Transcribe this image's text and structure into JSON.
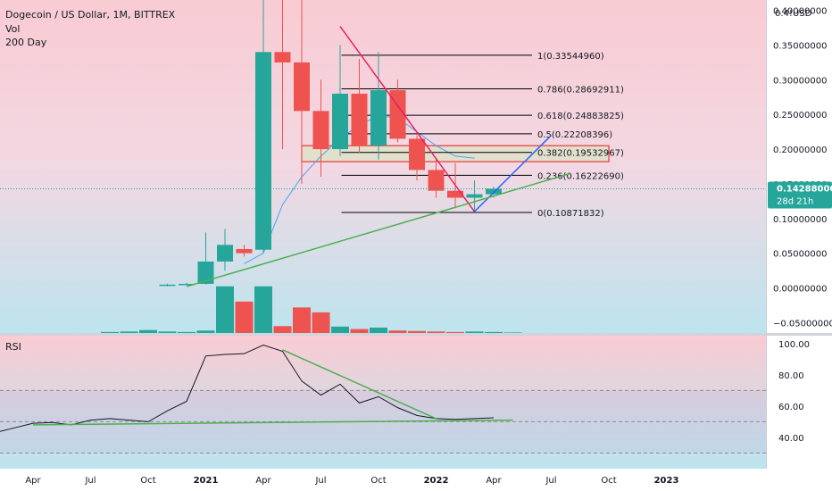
{
  "header": {
    "symbol_line": "Dogecoin / US Dollar, 1M, BITTREX",
    "vol_label": "Vol",
    "ma_label": "200 Day",
    "currency_label": "USD",
    "top_cut_label": "0.4!"
  },
  "price_tag": {
    "value": "0.14288000",
    "countdown": "28d 21h"
  },
  "rsi_label": "RSI",
  "colors": {
    "up": "#26a69a",
    "down": "#ef5350",
    "fib": "#000000",
    "downtrend": "#e91e63",
    "uptrend": "#2962ff",
    "support": "#4caf50",
    "zone_border": "#e53935",
    "ma": "#42a5f5"
  },
  "chart_data": {
    "type": "candlestick",
    "x_ticks": [
      "Apr",
      "Jul",
      "Oct",
      "2021",
      "Apr",
      "Jul",
      "Oct",
      "2022",
      "Apr",
      "Jul",
      "Oct",
      "2023"
    ],
    "y_ticks": [
      "0.40000000",
      "0.35000000",
      "0.30000000",
      "0.25000000",
      "0.20000000",
      "0.15000000",
      "0.10000000",
      "0.05000000",
      "0.00000000",
      "−0.05000000"
    ],
    "ylim": [
      -0.065,
      0.415
    ],
    "months": [
      "2020-11",
      "2020-12",
      "2021-01",
      "2021-02",
      "2021-03",
      "2021-04",
      "2021-05",
      "2021-06",
      "2021-07",
      "2021-08",
      "2021-09",
      "2021-10",
      "2021-11",
      "2021-12",
      "2022-01",
      "2022-02",
      "2022-03",
      "2022-04"
    ],
    "candles": [
      {
        "o": 0.003,
        "h": 0.006,
        "l": 0.002,
        "c": 0.0047
      },
      {
        "o": 0.0047,
        "h": 0.0075,
        "l": 0.004,
        "c": 0.0058
      },
      {
        "o": 0.0058,
        "h": 0.08,
        "l": 0.005,
        "c": 0.038
      },
      {
        "o": 0.038,
        "h": 0.085,
        "l": 0.025,
        "c": 0.062
      },
      {
        "o": 0.056,
        "h": 0.062,
        "l": 0.045,
        "c": 0.05
      },
      {
        "o": 0.055,
        "h": 0.44,
        "l": 0.05,
        "c": 0.34
      },
      {
        "o": 0.34,
        "h": 0.74,
        "l": 0.2,
        "c": 0.325
      },
      {
        "o": 0.325,
        "h": 0.44,
        "l": 0.15,
        "c": 0.255
      },
      {
        "o": 0.255,
        "h": 0.3,
        "l": 0.16,
        "c": 0.2
      },
      {
        "o": 0.2,
        "h": 0.35,
        "l": 0.19,
        "c": 0.28
      },
      {
        "o": 0.28,
        "h": 0.33,
        "l": 0.195,
        "c": 0.205
      },
      {
        "o": 0.205,
        "h": 0.34,
        "l": 0.185,
        "c": 0.285
      },
      {
        "o": 0.285,
        "h": 0.3,
        "l": 0.21,
        "c": 0.215
      },
      {
        "o": 0.215,
        "h": 0.22,
        "l": 0.155,
        "c": 0.17
      },
      {
        "o": 0.17,
        "h": 0.185,
        "l": 0.13,
        "c": 0.14
      },
      {
        "o": 0.14,
        "h": 0.18,
        "l": 0.115,
        "c": 0.13
      },
      {
        "o": 0.13,
        "h": 0.155,
        "l": 0.11,
        "c": 0.135
      },
      {
        "o": 0.135,
        "h": 0.146,
        "l": 0.13,
        "c": 0.1429
      }
    ],
    "volume_relative": [
      0.02,
      0.03,
      0.06,
      0.03,
      0.02,
      0.05,
      0.95,
      0.64,
      0.95,
      0.14,
      0.52,
      0.42,
      0.13,
      0.08,
      0.11,
      0.05,
      0.04,
      0.03,
      0.02,
      0.03,
      0.02,
      0.01
    ],
    "ma_200_day": [
      {
        "t": "2021-03",
        "v": 0.035
      },
      {
        "t": "2021-04",
        "v": 0.05
      },
      {
        "t": "2021-05",
        "v": 0.12
      },
      {
        "t": "2021-06",
        "v": 0.16
      },
      {
        "t": "2021-07",
        "v": 0.19
      },
      {
        "t": "2021-08",
        "v": 0.215
      },
      {
        "t": "2021-09",
        "v": 0.235
      },
      {
        "t": "2021-10",
        "v": 0.248
      },
      {
        "t": "2021-11",
        "v": 0.245
      },
      {
        "t": "2021-12",
        "v": 0.225
      },
      {
        "t": "2022-01",
        "v": 0.205
      },
      {
        "t": "2022-02",
        "v": 0.19
      },
      {
        "t": "2022-03",
        "v": 0.187
      }
    ],
    "fibonacci_levels": [
      {
        "label": "1(0.33544960)",
        "value": 0.3354496
      },
      {
        "label": "0.786(0.28692911)",
        "value": 0.28692911
      },
      {
        "label": "0.618(0.24883825)",
        "value": 0.24883825
      },
      {
        "label": "0.5(0.22208396)",
        "value": 0.22208396
      },
      {
        "label": "0.382(0.19532967)",
        "value": 0.19532967
      },
      {
        "label": "0.236(0.16222690)",
        "value": 0.1622269
      },
      {
        "label": "0(0.10871832)",
        "value": 0.10871832
      }
    ],
    "fib_range": {
      "from": "2021-09",
      "to": "2022-06"
    },
    "zone": {
      "from": "2021-06",
      "to": "2022-10",
      "top": 0.205,
      "bottom": 0.182
    },
    "current_price": 0.14288,
    "trendlines": [
      {
        "name": "downtrend",
        "from": {
          "t": "2021-08",
          "v": 0.377
        },
        "to": {
          "t": "2022-03",
          "v": 0.11
        }
      },
      {
        "name": "uptrend",
        "from": {
          "t": "2022-03",
          "v": 0.11
        },
        "to": {
          "t": "2022-07",
          "v": 0.22
        }
      },
      {
        "name": "support",
        "from": {
          "t": "2020-12",
          "v": 0.002
        },
        "to": {
          "t": "2022-08",
          "v": 0.165
        }
      }
    ],
    "rsi": {
      "y_ticks": [
        "100.00",
        "80.00",
        "60.00",
        "40.00"
      ],
      "ylim": [
        20,
        105
      ],
      "levels": [
        70,
        50,
        30
      ],
      "points": [
        {
          "t": "2020-02",
          "v": 43
        },
        {
          "t": "2020-03",
          "v": 46
        },
        {
          "t": "2020-04",
          "v": 49
        },
        {
          "t": "2020-05",
          "v": 49.5
        },
        {
          "t": "2020-06",
          "v": 48
        },
        {
          "t": "2020-07",
          "v": 51
        },
        {
          "t": "2020-08",
          "v": 52
        },
        {
          "t": "2020-09",
          "v": 51
        },
        {
          "t": "2020-10",
          "v": 50
        },
        {
          "t": "2020-11",
          "v": 57
        },
        {
          "t": "2020-12",
          "v": 63
        },
        {
          "t": "2021-01",
          "v": 92
        },
        {
          "t": "2021-02",
          "v": 93
        },
        {
          "t": "2021-03",
          "v": 93.5
        },
        {
          "t": "2021-04",
          "v": 99
        },
        {
          "t": "2021-05",
          "v": 95
        },
        {
          "t": "2021-06",
          "v": 76
        },
        {
          "t": "2021-07",
          "v": 67
        },
        {
          "t": "2021-08",
          "v": 74
        },
        {
          "t": "2021-09",
          "v": 62
        },
        {
          "t": "2021-10",
          "v": 66
        },
        {
          "t": "2021-11",
          "v": 59
        },
        {
          "t": "2021-12",
          "v": 54
        },
        {
          "t": "2022-01",
          "v": 52
        },
        {
          "t": "2022-02",
          "v": 51.5
        },
        {
          "t": "2022-03",
          "v": 52
        },
        {
          "t": "2022-04",
          "v": 52.5
        }
      ],
      "trendlines": [
        {
          "from": {
            "t": "2021-05",
            "v": 96
          },
          "to": {
            "t": "2022-01",
            "v": 52
          }
        },
        {
          "from": {
            "t": "2020-04",
            "v": 48
          },
          "to": {
            "t": "2022-05",
            "v": 51
          }
        }
      ]
    }
  }
}
